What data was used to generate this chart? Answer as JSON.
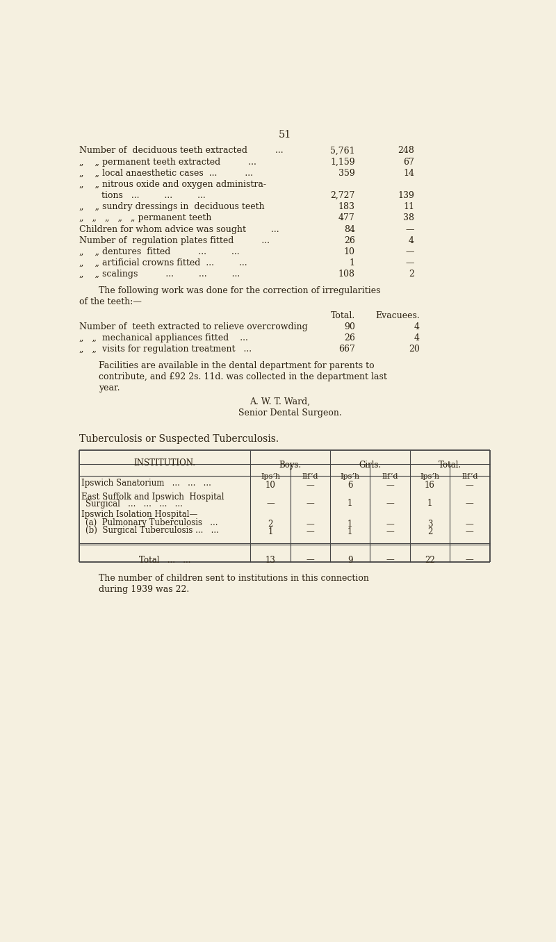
{
  "bg_color": "#f5f0e0",
  "text_color": "#2a2010",
  "page_number": "51",
  "fs": 10.5,
  "fs_small": 9.0,
  "section1_lines": [
    {
      "text": "Number of  deciduous teeth extracted          ...",
      "val1": "5,761",
      "val2": "248",
      "cont": false
    },
    {
      "text": "„    „ permanent teeth extracted          ...",
      "val1": "1,159",
      "val2": "67",
      "cont": true
    },
    {
      "text": "„    „ local anaesthetic cases  ...          ...",
      "val1": "359",
      "val2": "14",
      "cont": true
    },
    {
      "text": "„    „ nitrous oxide and oxygen administra-",
      "val1": "",
      "val2": "",
      "cont": true
    },
    {
      "text": "        tions   ...         ...         ...",
      "val1": "2,727",
      "val2": "139",
      "cont": false
    },
    {
      "text": "„    „ sundry dressings in  deciduous teeth",
      "val1": "183",
      "val2": "11",
      "cont": true
    },
    {
      "text": "„   „   „   „   „ permanent teeth",
      "val1": "477",
      "val2": "38",
      "cont": true
    },
    {
      "text": "Children for whom advice was sought         ...",
      "val1": "84",
      "val2": "—",
      "cont": false
    },
    {
      "text": "Number of  regulation plates fitted          ...",
      "val1": "26",
      "val2": "4",
      "cont": false
    },
    {
      "text": "„    „ dentures  fitted          ...         ...",
      "val1": "10",
      "val2": "—",
      "cont": true
    },
    {
      "text": "„    „ artificial crowns fitted  ...         ...",
      "val1": "1",
      "val2": "—",
      "cont": true
    },
    {
      "text": "„    „ scalings          ...         ...         ...",
      "val1": "108",
      "val2": "2",
      "cont": true
    }
  ],
  "para1_line1": "The following work was done for the correction of irregularities",
  "para1_line2": "of the teeth:—",
  "section2_lines": [
    {
      "text": "Number of  teeth extracted to relieve overcrowding",
      "val1": "90",
      "val2": "4"
    },
    {
      "text": "„   „  mechanical appliances fitted    ...",
      "val1": "26",
      "val2": "4"
    },
    {
      "text": "„   „  visits for regulation treatment   ...",
      "val1": "667",
      "val2": "20"
    }
  ],
  "para2_lines": [
    "Facilities are available in the dental department for parents to",
    "contribute, and £92 2s. 11d. was collected in the department last",
    "year."
  ],
  "signature1": "A. W. T. Ward,",
  "signature2": "Senior Dental Surgeon.",
  "tb_heading": "Tuberculosis or Suspected Tuberculosis.",
  "tb_col_sub": [
    "Ips’h",
    "Ilf’d",
    "Ips’h",
    "Ilf’d",
    "Ips’h",
    "Ilf’d"
  ],
  "tb_institution_label": "INSTITUTION.",
  "footer_lines": [
    "The number of children sent to institutions in this connection",
    "during 1939 was 22."
  ]
}
